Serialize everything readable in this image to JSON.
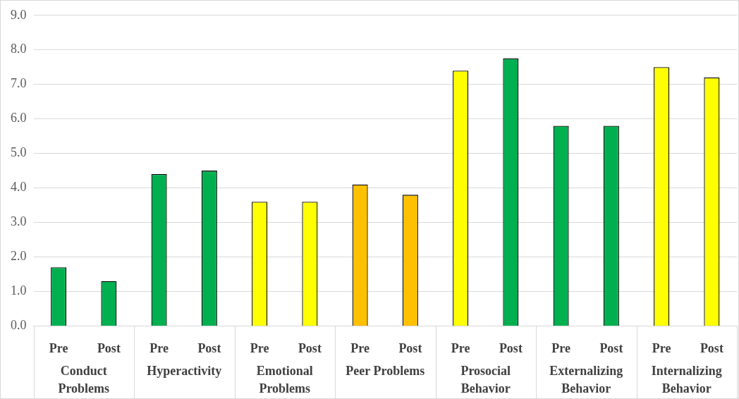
{
  "chart_data": {
    "type": "bar",
    "categories": [
      "Pre",
      "Post",
      "Pre",
      "Post",
      "Pre",
      "Post",
      "Pre",
      "Post",
      "Pre",
      "Post",
      "Pre",
      "Post",
      "Pre",
      "Post"
    ],
    "values": [
      1.7,
      1.3,
      4.4,
      4.5,
      3.6,
      3.6,
      4.1,
      3.8,
      7.4,
      7.75,
      5.8,
      5.8,
      7.5,
      7.2
    ],
    "colors": [
      "#00b050",
      "#00b050",
      "#00b050",
      "#00b050",
      "#ffff00",
      "#ffff00",
      "#ffc000",
      "#ffc000",
      "#ffff00",
      "#00b050",
      "#00b050",
      "#00b050",
      "#ffff00",
      "#ffff00"
    ],
    "annotations": [
      "Conduct Problems",
      "Hyperactivity",
      "Emotional Problems",
      "Peer Problems",
      "Prosocial Behavior",
      "Externalizing Behavior",
      "Internalizing Behavior"
    ],
    "ylim": [
      0,
      9
    ],
    "yticks": [
      {
        "value": 0,
        "label": "0.0"
      },
      {
        "value": 1,
        "label": "1.0"
      },
      {
        "value": 2,
        "label": "2.0"
      },
      {
        "value": 3,
        "label": "3.0"
      },
      {
        "value": 4,
        "label": "4.0"
      },
      {
        "value": 5,
        "label": "5.0"
      },
      {
        "value": 6,
        "label": "6.0"
      },
      {
        "value": 7,
        "label": "7.0"
      },
      {
        "value": 8,
        "label": "8.0"
      },
      {
        "value": 9,
        "label": "9.0"
      }
    ],
    "grid": "y",
    "legend": false
  }
}
